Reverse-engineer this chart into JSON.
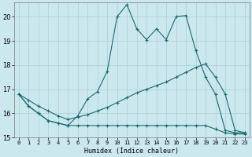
{
  "xlabel": "Humidex (Indice chaleur)",
  "background_color": "#cce8ef",
  "grid_color": "#aacdd6",
  "line_color": "#1a6b6b",
  "xlim": [
    -0.5,
    23.5
  ],
  "ylim": [
    15,
    20.6
  ],
  "yticks": [
    15,
    16,
    17,
    18,
    19,
    20
  ],
  "xticks": [
    0,
    1,
    2,
    3,
    4,
    5,
    6,
    7,
    8,
    9,
    10,
    11,
    12,
    13,
    14,
    15,
    16,
    17,
    18,
    19,
    20,
    21,
    22,
    23
  ],
  "line1_x": [
    0,
    1,
    2,
    3,
    4,
    5,
    6,
    7,
    8,
    9,
    10,
    11,
    12,
    13,
    14,
    15,
    16,
    17,
    18,
    19,
    20,
    21,
    22,
    23
  ],
  "line1_y": [
    16.8,
    16.3,
    16.0,
    15.7,
    15.6,
    15.5,
    15.9,
    16.6,
    16.9,
    17.75,
    20.0,
    20.5,
    19.5,
    19.05,
    19.5,
    19.05,
    20.0,
    20.05,
    18.6,
    17.5,
    16.8,
    15.3,
    15.2,
    15.2
  ],
  "line2_x": [
    0,
    1,
    2,
    3,
    4,
    5,
    6,
    7,
    8,
    9,
    10,
    11,
    12,
    13,
    14,
    15,
    16,
    17,
    18,
    19,
    20,
    21,
    22,
    23
  ],
  "line2_y": [
    16.8,
    16.55,
    16.3,
    16.1,
    15.9,
    15.75,
    15.85,
    15.95,
    16.1,
    16.25,
    16.45,
    16.65,
    16.85,
    17.0,
    17.15,
    17.3,
    17.5,
    17.7,
    17.9,
    18.05,
    17.5,
    16.8,
    15.3,
    15.2
  ],
  "line3_x": [
    0,
    1,
    2,
    3,
    4,
    5,
    6,
    7,
    8,
    9,
    10,
    11,
    12,
    13,
    14,
    15,
    16,
    17,
    18,
    19,
    20,
    21,
    22,
    23
  ],
  "line3_y": [
    16.8,
    16.3,
    16.0,
    15.7,
    15.6,
    15.5,
    15.5,
    15.5,
    15.5,
    15.5,
    15.5,
    15.5,
    15.5,
    15.5,
    15.5,
    15.5,
    15.5,
    15.5,
    15.5,
    15.5,
    15.35,
    15.2,
    15.15,
    15.15
  ]
}
